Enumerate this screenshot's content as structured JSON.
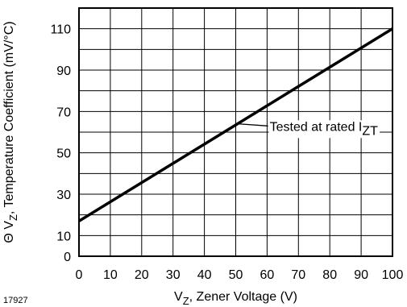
{
  "figure_id": "17927",
  "chart_data": {
    "type": "line",
    "xlabel": {
      "prefix": "V",
      "sub": "Z",
      "suffix": ", Zener Voltage (V)"
    },
    "ylabel": {
      "prefix": "Θ V",
      "sub": "Z",
      "suffix": ", Temperature Coefficient (mV/°C)"
    },
    "xlim": [
      0,
      100
    ],
    "ylim": [
      0,
      120
    ],
    "x_ticks": [
      0,
      10,
      20,
      30,
      40,
      50,
      60,
      70,
      80,
      90,
      100
    ],
    "y_ticks": [
      0,
      10,
      30,
      50,
      70,
      90,
      110
    ],
    "grid": true,
    "grid_x_step": 10,
    "grid_y_step": 10,
    "series": [
      {
        "x": [
          0,
          100
        ],
        "y": [
          17,
          110
        ],
        "color": "#000000"
      }
    ],
    "annotations": [
      {
        "text": "Tested at rated I",
        "sub": "ZT",
        "x": 67,
        "y": 63,
        "arrow_to": {
          "x": 51,
          "y": 64
        }
      }
    ]
  }
}
